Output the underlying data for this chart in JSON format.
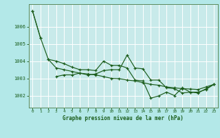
{
  "background_color": "#b3e8e8",
  "plot_bg_color": "#c8eaea",
  "grid_color": "#ffffff",
  "line_color": "#1a5c1a",
  "xlabel": "Graphe pression niveau de la mer (hPa)",
  "xlabel_color": "#1a5c1a",
  "tick_color": "#1a5c1a",
  "spine_color": "#5a8a5a",
  "xlim": [
    -0.5,
    23.5
  ],
  "ylim": [
    1001.3,
    1007.3
  ],
  "yticks": [
    1002,
    1003,
    1004,
    1005,
    1006
  ],
  "xticks": [
    0,
    1,
    2,
    3,
    4,
    5,
    6,
    7,
    8,
    9,
    10,
    11,
    12,
    13,
    14,
    15,
    16,
    17,
    18,
    19,
    20,
    21,
    22,
    23
  ],
  "series": [
    {
      "x": [
        0,
        1
      ],
      "y": [
        1006.9,
        1005.35
      ]
    },
    {
      "x": [
        2,
        3,
        4,
        5,
        6,
        7,
        8,
        9,
        10,
        11,
        12,
        13,
        14,
        15,
        16,
        17,
        18,
        19,
        20,
        21,
        22,
        23
      ],
      "y": [
        1004.1,
        1004.0,
        1003.85,
        1003.65,
        1003.5,
        1003.5,
        1003.45,
        1004.0,
        1003.75,
        1003.75,
        1003.6,
        1002.9,
        1002.85,
        1001.85,
        1001.98,
        1002.2,
        1002.0,
        1002.45,
        1002.2,
        1002.2,
        1002.35,
        1002.65
      ]
    },
    {
      "x": [
        3,
        4,
        5,
        6,
        7,
        8,
        9,
        10,
        11,
        12,
        13,
        14,
        15,
        16,
        17,
        18,
        19,
        20,
        21,
        22,
        23
      ],
      "y": [
        1003.1,
        1003.2,
        1003.2,
        1003.3,
        1003.2,
        1003.25,
        1003.45,
        1003.5,
        1003.5,
        1004.35,
        1003.6,
        1003.55,
        1002.9,
        1002.9,
        1002.45,
        1002.4,
        1002.15,
        1002.2,
        1002.15,
        1002.4,
        1002.65
      ]
    },
    {
      "x": [
        0,
        1,
        2,
        3,
        4,
        5,
        6,
        7,
        8,
        9,
        10,
        11,
        12,
        13,
        14,
        15,
        16,
        17,
        18,
        19,
        20,
        21,
        22,
        23
      ],
      "y": [
        1006.9,
        1005.35,
        1004.1,
        1003.6,
        1003.5,
        1003.4,
        1003.3,
        1003.25,
        1003.2,
        1003.1,
        1003.0,
        1002.98,
        1002.9,
        1002.85,
        1002.75,
        1002.65,
        1002.6,
        1002.5,
        1002.45,
        1002.4,
        1002.38,
        1002.35,
        1002.5,
        1002.65
      ]
    }
  ]
}
